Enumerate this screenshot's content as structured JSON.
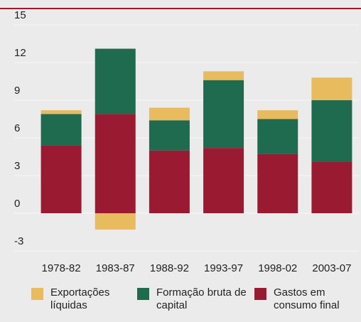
{
  "chart_data": {
    "type": "stacked_bar",
    "categories": [
      "1978-82",
      "1983-87",
      "1988-92",
      "1993-97",
      "1998-02",
      "2003-07"
    ],
    "series": [
      {
        "name": "Exportações líquidas",
        "color": "#e8bb5e",
        "values": [
          0.3,
          -1.3,
          1.0,
          0.7,
          0.7,
          1.8
        ]
      },
      {
        "name": "Formação bruta de capital",
        "color": "#1e6b4f",
        "values": [
          2.5,
          5.2,
          2.4,
          5.4,
          2.8,
          4.9
        ]
      },
      {
        "name": "Gastos em consumo final",
        "color": "#9a1b31",
        "values": [
          5.4,
          7.9,
          5.0,
          5.2,
          4.7,
          4.1
        ]
      }
    ],
    "ylim": [
      -4,
      16
    ],
    "yticks": [
      -3,
      0,
      3,
      6,
      9,
      12,
      15
    ],
    "grid": true
  }
}
